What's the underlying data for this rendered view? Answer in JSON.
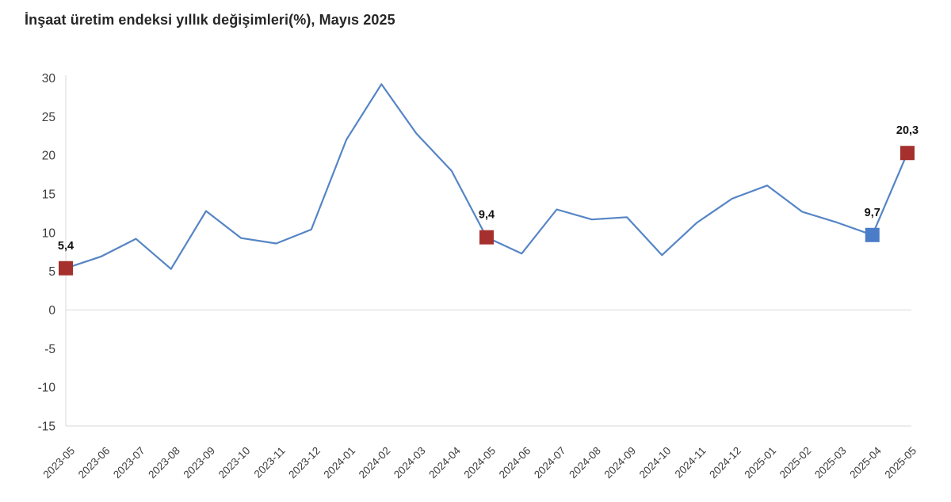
{
  "title": "İnşaat üretim endeksi yıllık değişimleri(%), Mayıs 2025",
  "chart_data": {
    "type": "line",
    "title": "İnşaat üretim endeksi yıllık değişimleri(%), Mayıs 2025",
    "xlabel": "",
    "ylabel": "",
    "x": [
      "2023-05",
      "2023-06",
      "2023-07",
      "2023-08",
      "2023-09",
      "2023-10",
      "2023-11",
      "2023-12",
      "2024-01",
      "2024-02",
      "2024-03",
      "2024-04",
      "2024-05",
      "2024-06",
      "2024-07",
      "2024-08",
      "2024-09",
      "2024-10",
      "2024-11",
      "2024-12",
      "2025-01",
      "2025-02",
      "2025-03",
      "2025-04",
      "2025-05"
    ],
    "values": [
      5.4,
      6.9,
      9.2,
      5.3,
      12.8,
      9.3,
      8.6,
      10.4,
      22.0,
      29.2,
      22.8,
      18.0,
      9.4,
      7.3,
      13.0,
      11.7,
      12.0,
      7.1,
      11.3,
      14.4,
      16.1,
      12.7,
      11.3,
      9.7,
      20.3
    ],
    "ylim": [
      -15,
      30
    ],
    "yticks": [
      30,
      25,
      20,
      15,
      10,
      5,
      0,
      -5,
      -10,
      -15
    ],
    "grid": "zero-line-only",
    "legend": "none",
    "line_color": "#5585c5",
    "axis_color": "#d9d9d9",
    "annotated_points": [
      {
        "x": "2023-05",
        "index": 0,
        "value": 5.4,
        "label": "5,4",
        "marker": "square",
        "marker_color": "#a5302d"
      },
      {
        "x": "2024-05",
        "index": 12,
        "value": 9.4,
        "label": "9,4",
        "marker": "square",
        "marker_color": "#a5302d"
      },
      {
        "x": "2025-04",
        "index": 23,
        "value": 9.7,
        "label": "9,7",
        "marker": "square",
        "marker_color": "#4a7cc7"
      },
      {
        "x": "2025-05",
        "index": 24,
        "value": 20.3,
        "label": "20,3",
        "marker": "square",
        "marker_color": "#a5302d"
      }
    ]
  }
}
